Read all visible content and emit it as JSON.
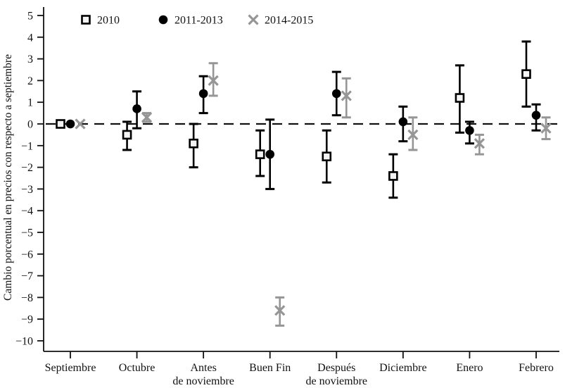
{
  "chart_data": {
    "type": "scatter",
    "subtype": "errorbar-dot-plot",
    "title": "",
    "xlabel": "",
    "ylabel": "Cambio porcentual en precios con respecto a septiembre",
    "ylim": [
      -10,
      5
    ],
    "ytick_step": 1,
    "y_ticks": [
      5,
      4,
      3,
      2,
      1,
      0,
      -1,
      -2,
      -3,
      -4,
      -5,
      -6,
      -7,
      -8,
      -9,
      -10
    ],
    "grid": false,
    "zero_reference_line": true,
    "legend_position": "top-inside",
    "background_color": "#ffffff",
    "axis_color": "#111111",
    "categories": [
      "Septiembre",
      "Octubre",
      "Antes\nde noviembre",
      "Buen Fin",
      "Después\nde noviembre",
      "Diciembre",
      "Enero",
      "Febrero"
    ],
    "series": [
      {
        "name": "2010",
        "marker": "open-square",
        "color": "#000000",
        "marker_fill": "#f4f4f4",
        "points": [
          {
            "y": 0.0,
            "lo": 0.0,
            "hi": 0.0
          },
          {
            "y": -0.5,
            "lo": -1.2,
            "hi": 0.1
          },
          {
            "y": -0.9,
            "lo": -2.0,
            "hi": 0.0
          },
          {
            "y": -1.4,
            "lo": -2.4,
            "hi": -0.3
          },
          {
            "y": -1.5,
            "lo": -2.7,
            "hi": -0.3
          },
          {
            "y": -2.4,
            "lo": -3.4,
            "hi": -1.4
          },
          {
            "y": 1.2,
            "lo": -0.4,
            "hi": 2.7
          },
          {
            "y": 2.3,
            "lo": 0.8,
            "hi": 3.8
          }
        ]
      },
      {
        "name": "2011-2013",
        "marker": "filled-circle",
        "color": "#000000",
        "marker_fill": "#000000",
        "points": [
          {
            "y": 0.0,
            "lo": 0.0,
            "hi": 0.0
          },
          {
            "y": 0.7,
            "lo": -0.2,
            "hi": 1.5
          },
          {
            "y": 1.4,
            "lo": 0.5,
            "hi": 2.2
          },
          {
            "y": -1.4,
            "lo": -3.0,
            "hi": 0.2
          },
          {
            "y": 1.4,
            "lo": 0.4,
            "hi": 2.4
          },
          {
            "y": 0.1,
            "lo": -0.8,
            "hi": 0.8
          },
          {
            "y": -0.3,
            "lo": -0.9,
            "hi": 0.1
          },
          {
            "y": 0.4,
            "lo": -0.3,
            "hi": 0.9
          }
        ]
      },
      {
        "name": "2014-2015",
        "marker": "x-cross",
        "color": "#969696",
        "marker_fill": "#969696",
        "points": [
          {
            "y": 0.0,
            "lo": 0.0,
            "hi": 0.0
          },
          {
            "y": 0.3,
            "lo": 0.1,
            "hi": 0.5
          },
          {
            "y": 2.0,
            "lo": 1.3,
            "hi": 2.8
          },
          {
            "y": -8.6,
            "lo": -9.3,
            "hi": -8.0
          },
          {
            "y": 1.3,
            "lo": 0.3,
            "hi": 2.1
          },
          {
            "y": -0.5,
            "lo": -1.2,
            "hi": 0.3
          },
          {
            "y": -0.9,
            "lo": -1.4,
            "hi": -0.5
          },
          {
            "y": -0.2,
            "lo": -0.7,
            "hi": 0.3
          }
        ]
      }
    ]
  }
}
